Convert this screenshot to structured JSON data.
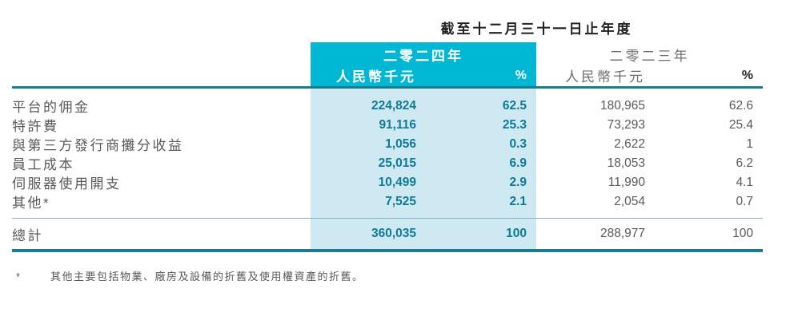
{
  "table": {
    "period_title": "截至十二月三十一日止年度",
    "header": {
      "y2024": {
        "year": "二零二四年",
        "unit": "人民幣千元",
        "pct": "%"
      },
      "y2023": {
        "year": "二零二三年",
        "unit": "人民幣千元",
        "pct": "%"
      }
    },
    "rows": [
      {
        "label": "平台的佣金",
        "a2024": "224,824",
        "p2024": "62.5",
        "a2023": "180,965",
        "p2023": "62.6"
      },
      {
        "label": "特許費",
        "a2024": "91,116",
        "p2024": "25.3",
        "a2023": "73,293",
        "p2023": "25.4"
      },
      {
        "label": "與第三方發行商攤分收益",
        "a2024": "1,056",
        "p2024": "0.3",
        "a2023": "2,622",
        "p2023": "1"
      },
      {
        "label": "員工成本",
        "a2024": "25,015",
        "p2024": "6.9",
        "a2023": "18,053",
        "p2023": "6.2"
      },
      {
        "label": "伺服器使用開支",
        "a2024": "10,499",
        "p2024": "2.9",
        "a2023": "11,990",
        "p2023": "4.1"
      },
      {
        "label": "其他*",
        "a2024": "7,525",
        "p2024": "2.1",
        "a2023": "2,054",
        "p2023": "0.7"
      }
    ],
    "total": {
      "label": "總計",
      "a2024": "360,035",
      "p2024": "100",
      "a2023": "288,977",
      "p2023": "100"
    }
  },
  "footnote": {
    "marker": "*",
    "text": "其他主要包括物業、廠房及設備的折舊及使用權資產的折舊。"
  },
  "colors": {
    "accent_cyan": "#00b8d4",
    "highlight_band": "#cfe9f2",
    "rule_teal": "#187d91",
    "number_teal": "#0d7a96"
  }
}
